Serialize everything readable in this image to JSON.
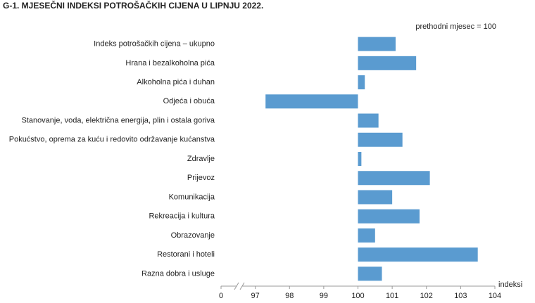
{
  "chart_data": {
    "type": "bar",
    "orientation": "horizontal",
    "title": "G-1.  MJESEČNI INDEKSI POTROŠAČKIH CIJENA U LIPNJU 2022.",
    "subtitle": "prethodni mjesec = 100",
    "x_label": "indeksi",
    "categories": [
      "Indeks potrošačkih cijena – ukupno",
      "Hrana i bezalkoholna pića",
      "Alkoholna pića i duhan",
      "Odjeća i obuća",
      "Stanovanje, voda, električna energija, plin i ostala goriva",
      "Pokućstvo, oprema za kuću i redovito održavanje kućanstva",
      "Zdravlje",
      "Prijevoz",
      "Komunikacija",
      "Rekreacija i kultura",
      "Obrazovanje",
      "Restorani i hoteli",
      "Razna dobra i usluge"
    ],
    "values": [
      101.1,
      101.7,
      100.2,
      97.3,
      100.6,
      101.3,
      100.1,
      102.1,
      101.0,
      101.8,
      100.5,
      103.5,
      100.7
    ],
    "base": 100,
    "color": "#5a9bd0",
    "xlim": [
      0,
      104
    ],
    "axis_break": [
      0,
      97
    ],
    "xticks": [
      0,
      97,
      98,
      99,
      100,
      101,
      102,
      103,
      104
    ],
    "grid": false
  }
}
